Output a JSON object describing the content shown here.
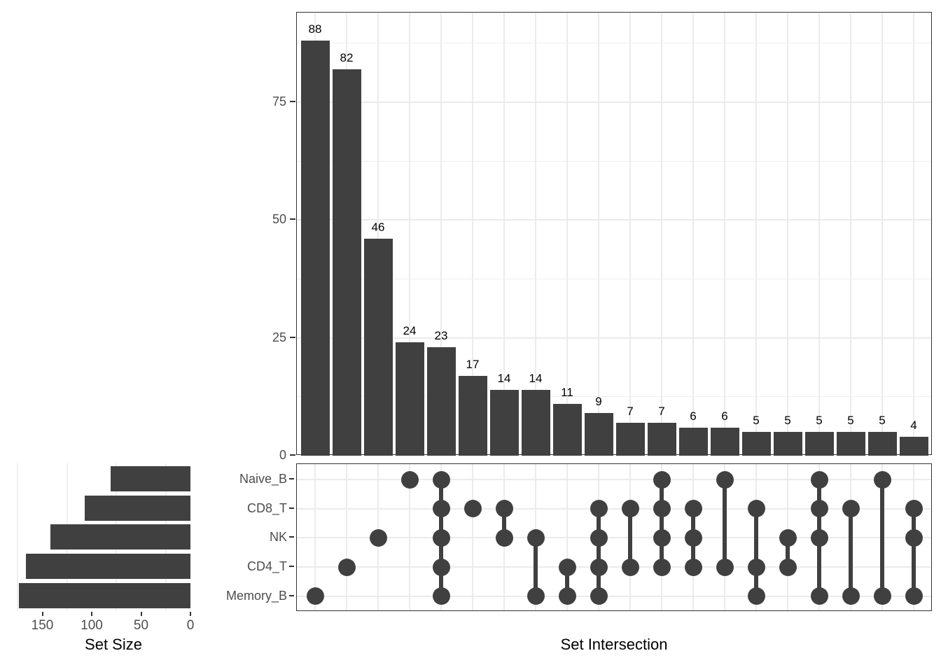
{
  "chart_data": {
    "type": "upset",
    "sets": [
      {
        "name": "Naive_B",
        "size": 81
      },
      {
        "name": "CD8_T",
        "size": 107
      },
      {
        "name": "NK",
        "size": 142
      },
      {
        "name": "CD4_T",
        "size": 167
      },
      {
        "name": "Memory_B",
        "size": 174
      }
    ],
    "set_size_axis": {
      "label": "Set Size",
      "ticks": [
        150,
        100,
        50,
        0
      ],
      "minor_gridlines": [
        175,
        125,
        75,
        25
      ],
      "reversed": true,
      "max": 183
    },
    "value_axis": {
      "ticks": [
        0,
        25,
        50,
        75
      ],
      "minor_gridlines": [
        12.5,
        37.5,
        62.5,
        87.5
      ],
      "max": 94
    },
    "intersection_axis": {
      "label": "Set Intersection"
    },
    "intersections": [
      {
        "size": 88,
        "members": [
          "Memory_B"
        ]
      },
      {
        "size": 82,
        "members": [
          "CD4_T"
        ]
      },
      {
        "size": 46,
        "members": [
          "NK"
        ]
      },
      {
        "size": 24,
        "members": [
          "Naive_B"
        ]
      },
      {
        "size": 23,
        "members": [
          "Naive_B",
          "CD8_T",
          "NK",
          "CD4_T",
          "Memory_B"
        ]
      },
      {
        "size": 17,
        "members": [
          "CD8_T"
        ]
      },
      {
        "size": 14,
        "members": [
          "CD8_T",
          "NK"
        ]
      },
      {
        "size": 14,
        "members": [
          "NK",
          "Memory_B"
        ]
      },
      {
        "size": 11,
        "members": [
          "CD4_T",
          "Memory_B"
        ]
      },
      {
        "size": 9,
        "members": [
          "CD8_T",
          "NK",
          "CD4_T",
          "Memory_B"
        ]
      },
      {
        "size": 7,
        "members": [
          "CD8_T",
          "CD4_T"
        ]
      },
      {
        "size": 7,
        "members": [
          "Naive_B",
          "CD8_T",
          "NK",
          "CD4_T"
        ]
      },
      {
        "size": 6,
        "members": [
          "CD8_T",
          "NK",
          "CD4_T"
        ]
      },
      {
        "size": 6,
        "members": [
          "Naive_B",
          "CD4_T"
        ]
      },
      {
        "size": 5,
        "members": [
          "CD8_T",
          "CD4_T",
          "Memory_B"
        ]
      },
      {
        "size": 5,
        "members": [
          "NK",
          "CD4_T"
        ]
      },
      {
        "size": 5,
        "members": [
          "Naive_B",
          "CD8_T",
          "NK",
          "Memory_B"
        ]
      },
      {
        "size": 5,
        "members": [
          "CD8_T",
          "Memory_B"
        ]
      },
      {
        "size": 5,
        "members": [
          "Naive_B",
          "Memory_B"
        ]
      },
      {
        "size": 4,
        "members": [
          "CD8_T",
          "NK",
          "Memory_B"
        ]
      }
    ]
  },
  "style": {
    "colors": {
      "bar": "#404040",
      "dot": "#404040",
      "grid": "#ebebeb",
      "grid_minor": "#efefef",
      "panel_border": "#333333",
      "axis": "#333333",
      "tick_text": "#4d4d4d",
      "label_text": "#000000",
      "title_text": "#000000",
      "background": "#ffffff"
    }
  }
}
